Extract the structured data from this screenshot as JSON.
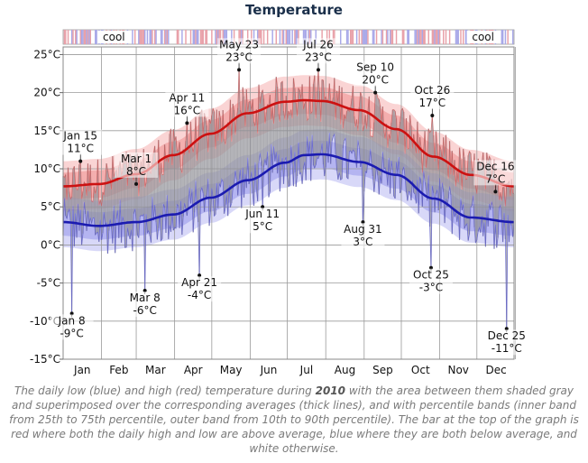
{
  "chart_data": {
    "type": "area",
    "title": "Temperature",
    "months": [
      "Jan",
      "Feb",
      "Mar",
      "Apr",
      "May",
      "Jun",
      "Jul",
      "Aug",
      "Sep",
      "Oct",
      "Nov",
      "Dec"
    ],
    "yticks": [
      "25°C",
      "20°C",
      "15°C",
      "10°C",
      "5°C",
      "0°C",
      "-5°C",
      "-10°C",
      "-15°C"
    ],
    "ytick_values": [
      25,
      20,
      15,
      10,
      5,
      0,
      -5,
      -10,
      -15
    ],
    "ylim": [
      -15,
      26
    ],
    "xlim": [
      1,
      365
    ],
    "grid": true,
    "bar_labels": [
      {
        "text": "cool",
        "day": 42
      },
      {
        "text": "cool",
        "day": 340
      }
    ],
    "series": [
      {
        "name": "average high",
        "color": "#cc1111",
        "x": [
          1,
          30,
          60,
          90,
          120,
          150,
          180,
          196,
          210,
          240,
          270,
          300,
          330,
          365
        ],
        "values": [
          7.7,
          8.0,
          9.3,
          11.8,
          14.6,
          17.3,
          18.8,
          19.0,
          18.9,
          17.7,
          15.2,
          11.6,
          9.2,
          7.7
        ],
        "p25_75_halfwidth": 1.8,
        "p10_90_halfwidth": 3.3
      },
      {
        "name": "average low",
        "color": "#1b1bb0",
        "x": [
          1,
          30,
          60,
          90,
          120,
          150,
          180,
          196,
          210,
          240,
          270,
          300,
          330,
          365
        ],
        "values": [
          3.0,
          2.5,
          3.0,
          4.0,
          6.2,
          8.5,
          10.8,
          11.8,
          11.9,
          10.9,
          9.2,
          6.1,
          3.6,
          3.0
        ],
        "p25_75_halfwidth": 1.8,
        "p10_90_halfwidth": 3.3
      }
    ],
    "annotations": [
      {
        "date": "Jan 8",
        "value": "-9°C",
        "day": 8,
        "temp": -9
      },
      {
        "date": "Jan 15",
        "value": "11°C",
        "day": 15,
        "temp": 11
      },
      {
        "date": "Mar 1",
        "value": "8°C",
        "day": 60,
        "temp": 8
      },
      {
        "date": "Mar 8",
        "value": "-6°C",
        "day": 67,
        "temp": -6
      },
      {
        "date": "Apr 11",
        "value": "16°C",
        "day": 101,
        "temp": 16
      },
      {
        "date": "Apr 21",
        "value": "-4°C",
        "day": 111,
        "temp": -4
      },
      {
        "date": "May 23",
        "value": "23°C",
        "day": 143,
        "temp": 23
      },
      {
        "date": "Jun 11",
        "value": "5°C",
        "day": 162,
        "temp": 5
      },
      {
        "date": "Jul 26",
        "value": "23°C",
        "day": 207,
        "temp": 23
      },
      {
        "date": "Aug 31",
        "value": "3°C",
        "day": 243,
        "temp": 3
      },
      {
        "date": "Sep 10",
        "value": "20°C",
        "day": 253,
        "temp": 20
      },
      {
        "date": "Oct 25",
        "value": "-3°C",
        "day": 298,
        "temp": -3
      },
      {
        "date": "Oct 26",
        "value": "17°C",
        "day": 299,
        "temp": 17
      },
      {
        "date": "Dec 16",
        "value": "7°C",
        "day": 350,
        "temp": 7
      },
      {
        "date": "Dec 25",
        "value": "-11°C",
        "day": 359,
        "temp": -11
      }
    ]
  },
  "caption": {
    "part1": "The daily low (blue) and high (red) temperature during ",
    "year": "2010",
    "part2": " with the area between them shaded gray and superimposed over the corresponding averages (thick lines), and with percentile bands (inner band from 25th to 75th percentile, outer band from 10th to 90th percentile). The bar at the top of the graph is red where both the daily high and low are above average, blue where they are both below average, and white otherwise."
  }
}
